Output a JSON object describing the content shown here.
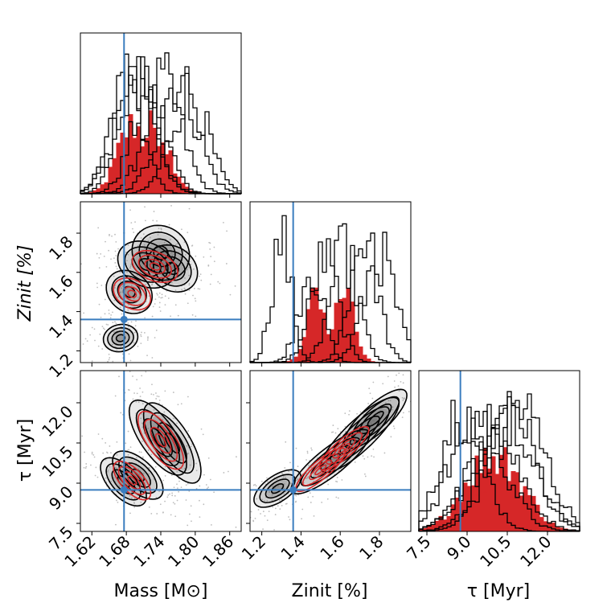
{
  "chart_data": {
    "type": "corner",
    "parameters": [
      {
        "key": "mass",
        "label": "Mass [M⊙]",
        "ticks": [
          "1.62",
          "1.68",
          "1.74",
          "1.80",
          "1.86"
        ],
        "tick_values": [
          1.62,
          1.68,
          1.74,
          1.8,
          1.86
        ],
        "range": [
          1.6,
          1.88
        ]
      },
      {
        "key": "z_init",
        "label": "Zinit [%]",
        "ticks": [
          "1.2",
          "1.4",
          "1.6",
          "1.8"
        ],
        "tick_values": [
          1.2,
          1.4,
          1.6,
          1.8
        ],
        "range": [
          1.14,
          1.96
        ]
      },
      {
        "key": "tau",
        "label": "τ [Myr]",
        "ticks": [
          "7.5",
          "9.0",
          "10.5",
          "12.0"
        ],
        "tick_values": [
          7.5,
          9.0,
          10.5,
          12.0
        ],
        "range": [
          7.2,
          13.2
        ]
      }
    ],
    "truths": {
      "mass": 1.676,
      "z_init": 1.36,
      "tau": 8.75
    },
    "colors": {
      "samples": "#000000",
      "highlight": "#d62728",
      "truth": "#3a7dbf",
      "grid_fill": "#666666"
    },
    "histograms_1d": {
      "mass": {
        "black_series": [
          {
            "center": 1.68,
            "width": 0.028
          },
          {
            "center": 1.7,
            "width": 0.03
          },
          {
            "center": 1.72,
            "width": 0.03
          },
          {
            "center": 1.745,
            "width": 0.032
          },
          {
            "center": 1.77,
            "width": 0.034
          },
          {
            "center": 1.79,
            "width": 0.032
          },
          {
            "center": 1.695,
            "width": 0.034
          }
        ],
        "red_series": [
          {
            "center": 1.692,
            "width": 0.026
          },
          {
            "center": 1.73,
            "width": 0.026
          }
        ]
      },
      "z_init": {
        "black_series": [
          {
            "center": 1.3,
            "width": 0.05
          },
          {
            "center": 1.45,
            "width": 0.06
          },
          {
            "center": 1.52,
            "width": 0.07
          },
          {
            "center": 1.62,
            "width": 0.07
          },
          {
            "center": 1.72,
            "width": 0.07
          },
          {
            "center": 1.8,
            "width": 0.08
          }
        ],
        "red_series": [
          {
            "center": 1.48,
            "width": 0.05
          },
          {
            "center": 1.62,
            "width": 0.05
          }
        ]
      },
      "tau": {
        "black_series": [
          {
            "center": 8.8,
            "width": 0.8
          },
          {
            "center": 9.4,
            "width": 1.0
          },
          {
            "center": 10.0,
            "width": 1.0
          },
          {
            "center": 10.3,
            "width": 1.1
          },
          {
            "center": 10.6,
            "width": 1.0
          },
          {
            "center": 10.9,
            "width": 1.0
          }
        ],
        "red_series": [
          {
            "center": 9.7,
            "width": 0.9
          },
          {
            "center": 10.3,
            "width": 0.9
          }
        ]
      }
    },
    "contours_2d": {
      "z_init_vs_mass": {
        "black_clusters": [
          {
            "x": 1.67,
            "y": 1.265,
            "sx": 0.015,
            "sy": 0.035,
            "rho": 0.1
          },
          {
            "x": 1.685,
            "y": 1.5,
            "sx": 0.02,
            "sy": 0.055,
            "rho": -0.2
          },
          {
            "x": 1.715,
            "y": 1.64,
            "sx": 0.025,
            "sy": 0.06,
            "rho": -0.25
          },
          {
            "x": 1.74,
            "y": 1.7,
            "sx": 0.025,
            "sy": 0.07,
            "rho": -0.1
          },
          {
            "x": 1.76,
            "y": 1.62,
            "sx": 0.022,
            "sy": 0.06,
            "rho": -0.2
          }
        ],
        "red_clusters": [
          {
            "x": 1.69,
            "y": 1.49,
            "sx": 0.018,
            "sy": 0.045,
            "rho": -0.3
          },
          {
            "x": 1.73,
            "y": 1.63,
            "sx": 0.022,
            "sy": 0.045,
            "rho": -0.35
          }
        ]
      },
      "tau_vs_mass": {
        "black_clusters": [
          {
            "x": 1.675,
            "y": 9.05,
            "sx": 0.02,
            "sy": 0.45,
            "rho": -0.6
          },
          {
            "x": 1.7,
            "y": 9.3,
            "sx": 0.022,
            "sy": 0.45,
            "rho": -0.6
          },
          {
            "x": 1.735,
            "y": 10.7,
            "sx": 0.025,
            "sy": 0.7,
            "rho": -0.7
          },
          {
            "x": 1.76,
            "y": 10.5,
            "sx": 0.025,
            "sy": 0.75,
            "rho": -0.7
          }
        ],
        "red_clusters": [
          {
            "x": 1.69,
            "y": 9.1,
            "sx": 0.018,
            "sy": 0.4,
            "rho": -0.65
          },
          {
            "x": 1.74,
            "y": 10.6,
            "sx": 0.022,
            "sy": 0.6,
            "rho": -0.7
          }
        ]
      },
      "tau_vs_z_init": {
        "black_clusters": [
          {
            "x": 1.28,
            "y": 8.8,
            "sx": 0.06,
            "sy": 0.35,
            "rho": 0.6
          },
          {
            "x": 1.55,
            "y": 9.8,
            "sx": 0.1,
            "sy": 0.6,
            "rho": 0.85
          },
          {
            "x": 1.7,
            "y": 10.8,
            "sx": 0.1,
            "sy": 0.7,
            "rho": 0.85
          },
          {
            "x": 1.78,
            "y": 11.4,
            "sx": 0.08,
            "sy": 0.55,
            "rho": 0.8
          }
        ],
        "red_clusters": [
          {
            "x": 1.5,
            "y": 9.5,
            "sx": 0.07,
            "sy": 0.45,
            "rho": 0.85
          },
          {
            "x": 1.62,
            "y": 10.3,
            "sx": 0.07,
            "sy": 0.45,
            "rho": 0.85
          }
        ]
      }
    }
  }
}
